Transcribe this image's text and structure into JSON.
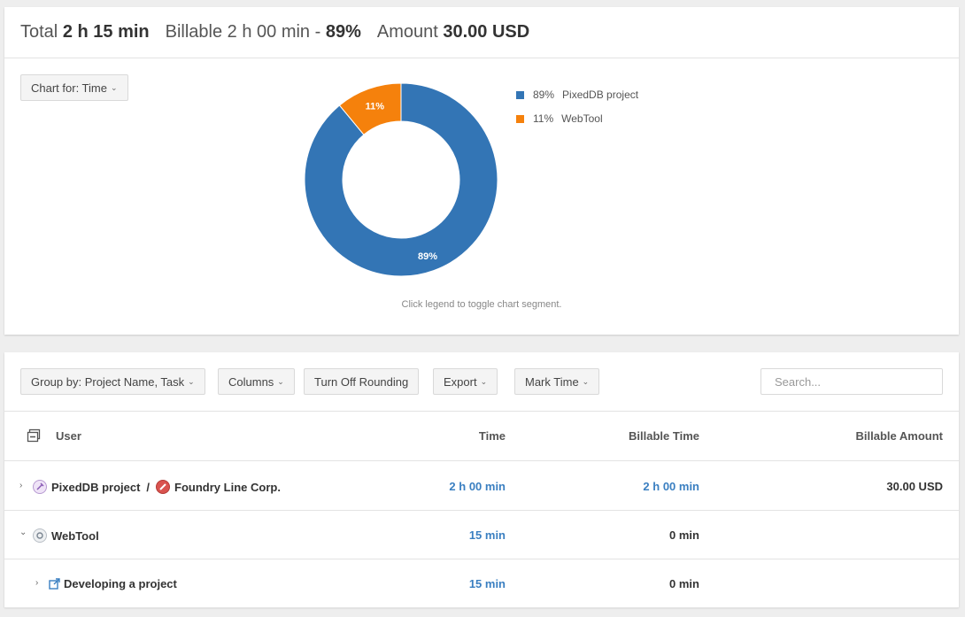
{
  "summary": {
    "total_label": "Total",
    "total_value": "2 h 15 min",
    "billable_label": "Billable 2 h 00 min -",
    "billable_pct": "89%",
    "amount_label": "Amount",
    "amount_value": "30.00 USD"
  },
  "chart_controls": {
    "chart_for_label": "Chart for: Time",
    "hint": "Click legend to toggle chart segment."
  },
  "chart_data": {
    "type": "pie",
    "donut": true,
    "categories": [
      "PixedDB project",
      "WebTool"
    ],
    "values": [
      89,
      11
    ],
    "labels": [
      "89%",
      "11%"
    ],
    "colors": [
      "#3375b5",
      "#f5810c"
    ],
    "legend": [
      {
        "pct": "89%",
        "name": "PixedDB project",
        "color": "#3375b5"
      },
      {
        "pct": "11%",
        "name": "WebTool",
        "color": "#f5810c"
      }
    ],
    "legend_position": "right"
  },
  "toolbar": {
    "group_by_label": "Group by: Project Name, Task",
    "columns_label": "Columns",
    "rounding_label": "Turn Off Rounding",
    "export_label": "Export",
    "mark_time_label": "Mark Time",
    "search_placeholder": "Search..."
  },
  "table": {
    "headers": {
      "user": "User",
      "time": "Time",
      "billable_time": "Billable Time",
      "billable_amount": "Billable Amount"
    },
    "rows": [
      {
        "project": "PixedDB project",
        "separator": "/",
        "client": "Foundry Line Corp.",
        "time": "2 h 00 min",
        "billable_time": "2 h 00 min",
        "billable_amount": "30.00 USD"
      },
      {
        "project": "WebTool",
        "time": "15 min",
        "billable_time": "0 min",
        "billable_amount": ""
      },
      {
        "task": "Developing a project",
        "time": "15 min",
        "billable_time": "0 min",
        "billable_amount": ""
      }
    ]
  },
  "icons": {
    "collapse_all": "collapse-all-icon",
    "expand_collapsed": "chevron-right-icon",
    "expanded": "chevron-down-icon",
    "task": "external-task-icon"
  }
}
